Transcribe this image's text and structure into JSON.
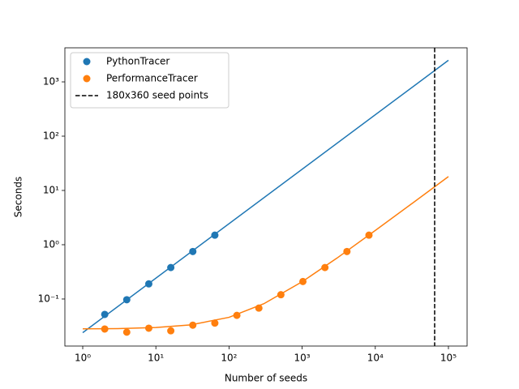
{
  "chart_data": {
    "type": "scatter",
    "xlabel": "Number of seeds",
    "ylabel": "Seconds",
    "xscale": "log",
    "yscale": "log",
    "xlim": [
      0.57,
      180000
    ],
    "ylim": [
      0.0136,
      4240
    ],
    "xticks": [
      {
        "value": 1,
        "label": "10⁰"
      },
      {
        "value": 10,
        "label": "10¹"
      },
      {
        "value": 100,
        "label": "10²"
      },
      {
        "value": 1000,
        "label": "10³"
      },
      {
        "value": 10000,
        "label": "10⁴"
      },
      {
        "value": 100000,
        "label": "10⁵"
      }
    ],
    "yticks": [
      {
        "value": 0.1,
        "label": "10⁻¹"
      },
      {
        "value": 1,
        "label": "10⁰"
      },
      {
        "value": 10,
        "label": "10¹"
      },
      {
        "value": 100,
        "label": "10²"
      },
      {
        "value": 1000,
        "label": "10³"
      }
    ],
    "legend": "upper left",
    "series": [
      {
        "name": "PythonTracer",
        "color": "#1f77b4",
        "x": [
          2,
          4,
          8,
          16,
          32,
          64
        ],
        "values": [
          0.052,
          0.097,
          0.19,
          0.38,
          0.75,
          1.5
        ]
      },
      {
        "name": "PerformanceTracer",
        "color": "#ff7f0e",
        "x": [
          2,
          4,
          8,
          16,
          32,
          64,
          128,
          256,
          512,
          1024,
          2048,
          4096,
          8192
        ],
        "values": [
          0.028,
          0.0245,
          0.029,
          0.026,
          0.033,
          0.036,
          0.05,
          0.068,
          0.12,
          0.21,
          0.38,
          0.75,
          1.5
        ]
      }
    ],
    "fits": [
      {
        "color": "#1f77b4",
        "x": [
          1,
          100000
        ],
        "values": [
          0.024,
          2500
        ]
      },
      {
        "color": "#ff7f0e",
        "x": [
          1,
          3,
          10,
          30,
          100,
          300,
          1000,
          3000,
          10000,
          30000,
          100000
        ],
        "values": [
          0.0282,
          0.0285,
          0.0298,
          0.0334,
          0.046,
          0.082,
          0.208,
          0.568,
          1.83,
          5.43,
          18.0
        ]
      }
    ],
    "vlines": [
      {
        "name": "180x360 seed points",
        "x": 64800,
        "color": "#000000",
        "dashed": true
      }
    ]
  }
}
